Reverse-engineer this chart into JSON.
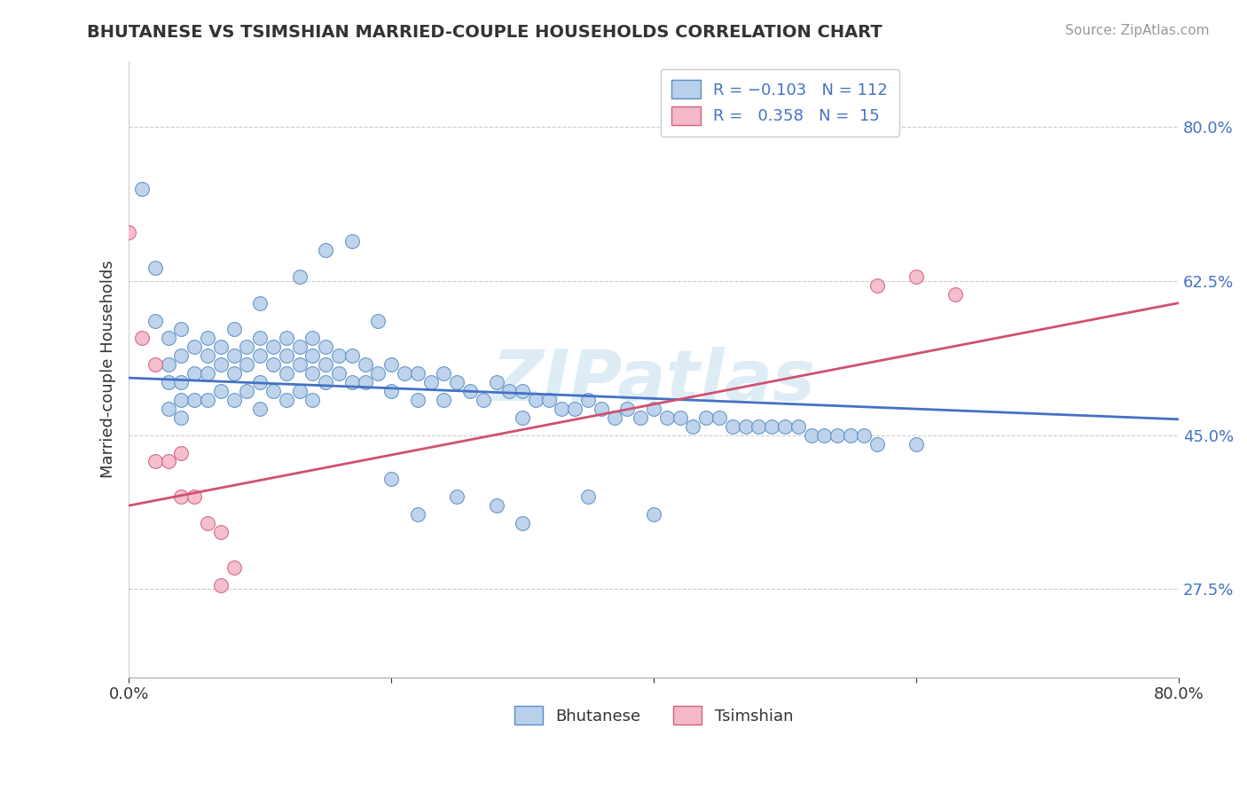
{
  "title": "BHUTANESE VS TSIMSHIAN MARRIED-COUPLE HOUSEHOLDS CORRELATION CHART",
  "source": "Source: ZipAtlas.com",
  "ylabel": "Married-couple Households",
  "xlim": [
    0.0,
    0.8
  ],
  "ylim": [
    0.175,
    0.875
  ],
  "ytick_vals": [
    0.275,
    0.45,
    0.625,
    0.8
  ],
  "ytick_labels": [
    "27.5%",
    "45.0%",
    "62.5%",
    "80.0%"
  ],
  "xtick_vals": [
    0.0,
    0.2,
    0.4,
    0.6,
    0.8
  ],
  "xtick_labels": [
    "0.0%",
    "",
    "",
    "",
    "80.0%"
  ],
  "blue_fill": "#b8d0ea",
  "blue_edge": "#5b8ec4",
  "pink_fill": "#f4b8c8",
  "pink_edge": "#d06080",
  "blue_line": "#4472c4",
  "pink_line": "#d05070",
  "tick_color": "#4472c4",
  "watermark_color": "#cde4f0",
  "blue_x": [
    0.01,
    0.02,
    0.02,
    0.03,
    0.03,
    0.03,
    0.03,
    0.04,
    0.04,
    0.04,
    0.04,
    0.04,
    0.05,
    0.05,
    0.05,
    0.06,
    0.06,
    0.06,
    0.06,
    0.07,
    0.07,
    0.07,
    0.08,
    0.08,
    0.08,
    0.08,
    0.09,
    0.09,
    0.09,
    0.1,
    0.1,
    0.1,
    0.1,
    0.11,
    0.11,
    0.11,
    0.12,
    0.12,
    0.12,
    0.12,
    0.13,
    0.13,
    0.13,
    0.14,
    0.14,
    0.14,
    0.14,
    0.15,
    0.15,
    0.15,
    0.16,
    0.16,
    0.17,
    0.17,
    0.18,
    0.18,
    0.19,
    0.2,
    0.2,
    0.21,
    0.22,
    0.22,
    0.23,
    0.24,
    0.24,
    0.25,
    0.26,
    0.27,
    0.28,
    0.29,
    0.3,
    0.3,
    0.31,
    0.32,
    0.33,
    0.34,
    0.35,
    0.36,
    0.37,
    0.38,
    0.39,
    0.4,
    0.41,
    0.42,
    0.43,
    0.44,
    0.45,
    0.46,
    0.47,
    0.48,
    0.49,
    0.5,
    0.51,
    0.52,
    0.53,
    0.54,
    0.55,
    0.56,
    0.57,
    0.1,
    0.13,
    0.15,
    0.17,
    0.19,
    0.2,
    0.22,
    0.25,
    0.28,
    0.3,
    0.35,
    0.4,
    0.6
  ],
  "blue_y": [
    0.73,
    0.64,
    0.58,
    0.56,
    0.53,
    0.51,
    0.48,
    0.57,
    0.54,
    0.51,
    0.49,
    0.47,
    0.55,
    0.52,
    0.49,
    0.56,
    0.54,
    0.52,
    0.49,
    0.55,
    0.53,
    0.5,
    0.57,
    0.54,
    0.52,
    0.49,
    0.55,
    0.53,
    0.5,
    0.56,
    0.54,
    0.51,
    0.48,
    0.55,
    0.53,
    0.5,
    0.56,
    0.54,
    0.52,
    0.49,
    0.55,
    0.53,
    0.5,
    0.56,
    0.54,
    0.52,
    0.49,
    0.55,
    0.53,
    0.51,
    0.54,
    0.52,
    0.54,
    0.51,
    0.53,
    0.51,
    0.52,
    0.53,
    0.5,
    0.52,
    0.52,
    0.49,
    0.51,
    0.52,
    0.49,
    0.51,
    0.5,
    0.49,
    0.51,
    0.5,
    0.5,
    0.47,
    0.49,
    0.49,
    0.48,
    0.48,
    0.49,
    0.48,
    0.47,
    0.48,
    0.47,
    0.48,
    0.47,
    0.47,
    0.46,
    0.47,
    0.47,
    0.46,
    0.46,
    0.46,
    0.46,
    0.46,
    0.46,
    0.45,
    0.45,
    0.45,
    0.45,
    0.45,
    0.44,
    0.6,
    0.63,
    0.66,
    0.67,
    0.58,
    0.4,
    0.36,
    0.38,
    0.37,
    0.35,
    0.38,
    0.36,
    0.44
  ],
  "pink_x": [
    0.0,
    0.01,
    0.02,
    0.02,
    0.03,
    0.04,
    0.04,
    0.05,
    0.06,
    0.07,
    0.07,
    0.08,
    0.57,
    0.6,
    0.63
  ],
  "pink_y": [
    0.68,
    0.56,
    0.53,
    0.42,
    0.42,
    0.43,
    0.38,
    0.38,
    0.35,
    0.34,
    0.28,
    0.3,
    0.62,
    0.63,
    0.61
  ],
  "blue_trend_x": [
    0.0,
    0.8
  ],
  "blue_trend_y": [
    0.515,
    0.468
  ],
  "pink_trend_x": [
    0.0,
    0.8
  ],
  "pink_trend_y": [
    0.37,
    0.6
  ]
}
